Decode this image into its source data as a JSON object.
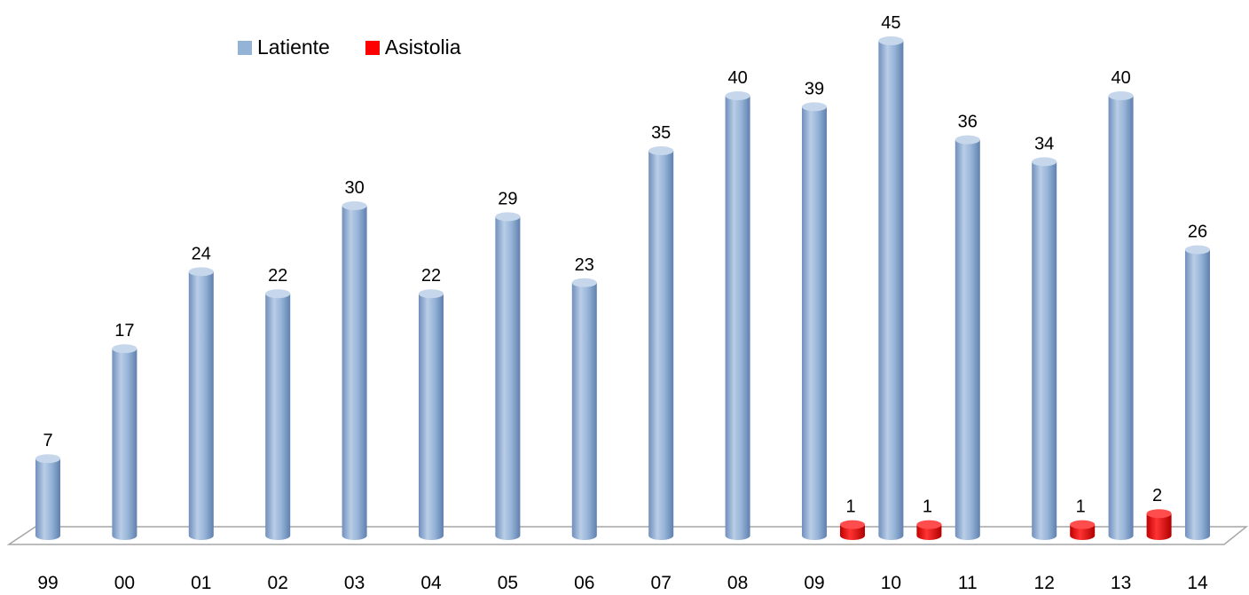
{
  "chart_data": {
    "type": "bar",
    "title": "",
    "xlabel": "",
    "ylabel": "",
    "categories": [
      "99",
      "00",
      "01",
      "02",
      "03",
      "04",
      "05",
      "06",
      "07",
      "08",
      "09",
      "10",
      "11",
      "12",
      "13",
      "14"
    ],
    "series": [
      {
        "name": "Latiente",
        "color": "#95b3d7",
        "values": [
          7,
          17,
          24,
          22,
          30,
          22,
          29,
          23,
          35,
          40,
          39,
          45,
          36,
          34,
          40,
          26
        ]
      },
      {
        "name": "Asistolia",
        "color": "#ff0000",
        "values": [
          null,
          null,
          null,
          null,
          null,
          null,
          null,
          null,
          null,
          null,
          1,
          1,
          null,
          1,
          2,
          null
        ]
      }
    ],
    "ylim": [
      0,
      45
    ],
    "grid": false,
    "legend_position": "top-left",
    "style": "3d-cylinder"
  }
}
